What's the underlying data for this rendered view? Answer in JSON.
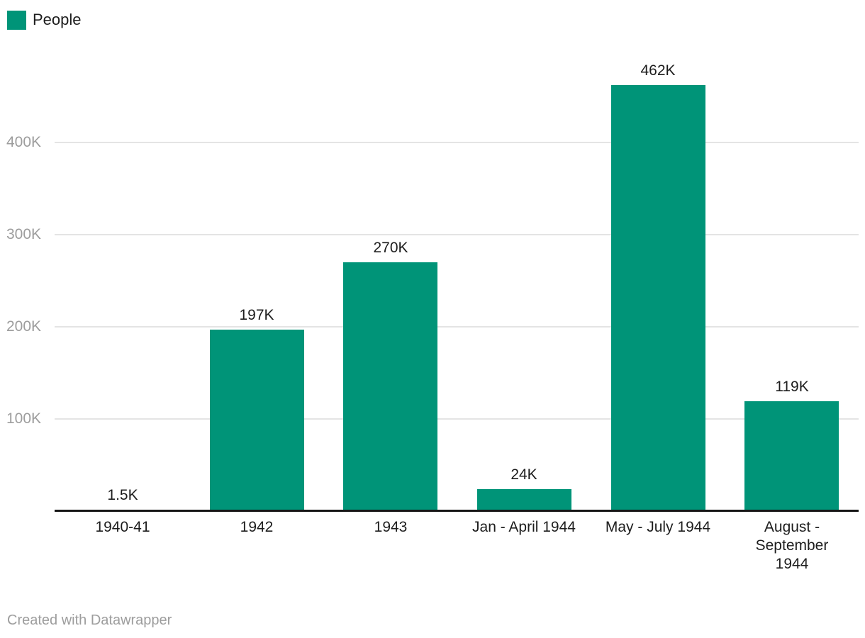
{
  "colors": {
    "bar": "#009478",
    "grid": "#e4e4e4",
    "axis": "#161616",
    "tick_label": "#9d9d9d",
    "text": "#1d1d1d",
    "footer": "#9d9d9d",
    "background": "#ffffff"
  },
  "footer": {
    "text": "Created with Datawrapper"
  },
  "chart_data": {
    "type": "bar",
    "title": "",
    "legend_label": "People",
    "legend_position": "top-left",
    "categories": [
      "1940-41",
      "1942",
      "1943",
      "Jan - April 1944",
      "May - July 1944",
      "August - September 1944"
    ],
    "category_label_lines": [
      [
        "1940-41"
      ],
      [
        "1942"
      ],
      [
        "1943"
      ],
      [
        "Jan - April 1944"
      ],
      [
        "May - July 1944"
      ],
      [
        "August -",
        "September",
        "1944"
      ]
    ],
    "series": [
      {
        "name": "People",
        "values": [
          1500,
          197000,
          270000,
          24000,
          462000,
          119000
        ]
      }
    ],
    "value_labels": [
      "1.5K",
      "197K",
      "270K",
      "24K",
      "462K",
      "119K"
    ],
    "xlabel": "",
    "ylabel": "",
    "ylim": [
      0,
      470000
    ],
    "grid": true,
    "yticks": [
      {
        "value": 100000,
        "label": "100K"
      },
      {
        "value": 200000,
        "label": "200K"
      },
      {
        "value": 300000,
        "label": "300K"
      },
      {
        "value": 400000,
        "label": "400K"
      }
    ],
    "attribution": "Created with Datawrapper"
  }
}
